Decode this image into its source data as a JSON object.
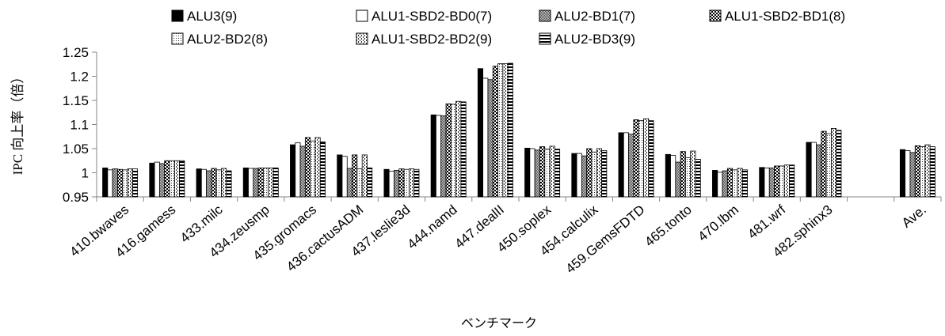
{
  "chart_data": {
    "type": "bar",
    "ylabel": "IPC 向上率（倍）",
    "xlabel": "ベンチマーク",
    "ylim": [
      0.95,
      1.25
    ],
    "yticks": [
      "0.95",
      "1",
      "1.05",
      "1.1",
      "1.15",
      "1.2",
      "1.25"
    ],
    "grid": false,
    "legend_position": "top",
    "categories": [
      "410.bwaves",
      "416.gamess",
      "433.milc",
      "434.zeusmp",
      "435.gromacs",
      "436.cactusADM",
      "437.leslie3d",
      "444.namd",
      "447.dealII",
      "450.soplex",
      "454.calculix",
      "459.GemsFDTD",
      "465.tonto",
      "470.lbm",
      "481.wrf",
      "482.sphinx3",
      "",
      "Ave."
    ],
    "series": [
      {
        "name": "ALU3(9)",
        "pattern": "solid",
        "values": [
          1.01,
          1.02,
          1.008,
          1.01,
          1.058,
          1.037,
          1.007,
          1.12,
          1.216,
          1.051,
          1.04,
          1.083,
          1.038,
          1.005,
          1.011,
          1.063,
          null,
          1.048
        ]
      },
      {
        "name": "ALU1-SBD2-BD0(7)",
        "pattern": "white",
        "values": [
          1.006,
          1.022,
          1.007,
          1.009,
          1.062,
          1.034,
          1.003,
          1.119,
          1.196,
          1.05,
          1.04,
          1.083,
          1.036,
          1.001,
          1.01,
          1.063,
          null,
          1.046
        ]
      },
      {
        "name": "ALU2-BD1(7)",
        "pattern": "gray",
        "values": [
          1.008,
          1.019,
          1.004,
          1.009,
          1.055,
          1.009,
          1.005,
          1.118,
          1.193,
          1.047,
          1.035,
          1.08,
          1.022,
          1.004,
          1.01,
          1.058,
          null,
          1.042
        ]
      },
      {
        "name": "ALU1-SBD2-BD1(8)",
        "pattern": "checker",
        "values": [
          1.007,
          1.025,
          1.009,
          1.01,
          1.073,
          1.037,
          1.008,
          1.143,
          1.221,
          1.054,
          1.05,
          1.11,
          1.044,
          1.009,
          1.014,
          1.086,
          null,
          1.056
        ]
      },
      {
        "name": "ALU2-BD2(8)",
        "pattern": "dots",
        "values": [
          1.006,
          1.025,
          1.006,
          1.01,
          1.066,
          1.008,
          1.007,
          1.142,
          1.226,
          1.049,
          1.043,
          1.108,
          1.031,
          1.006,
          1.014,
          1.081,
          null,
          1.054
        ]
      },
      {
        "name": "ALU1-SBD2-BD2(9)",
        "pattern": "dashes",
        "values": [
          1.008,
          1.025,
          1.009,
          1.01,
          1.073,
          1.037,
          1.008,
          1.148,
          1.226,
          1.055,
          1.05,
          1.112,
          1.045,
          1.009,
          1.016,
          1.092,
          null,
          1.058
        ]
      },
      {
        "name": "ALU2-BD3(9)",
        "pattern": "stripes",
        "values": [
          1.008,
          1.025,
          1.004,
          1.01,
          1.064,
          1.01,
          1.007,
          1.147,
          1.227,
          1.049,
          1.046,
          1.108,
          1.028,
          1.006,
          1.016,
          1.088,
          null,
          1.054
        ]
      }
    ]
  }
}
